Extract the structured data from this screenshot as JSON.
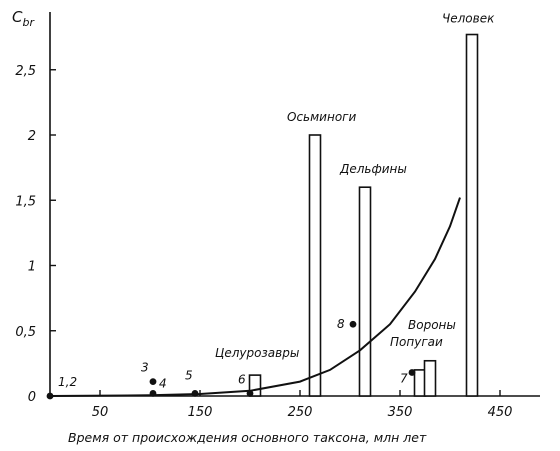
{
  "chart_data": {
    "type": "bar",
    "ylabel": "C",
    "ylabel_sub": "br",
    "xlabel": "Время от происхождения основного таксона, млн лет",
    "xlim": [
      0,
      450
    ],
    "ylim": [
      0,
      2.8
    ],
    "grid": false,
    "x_ticks": [
      {
        "value": 50,
        "label": "50"
      },
      {
        "value": 150,
        "label": "150"
      },
      {
        "value": 250,
        "label": "250"
      },
      {
        "value": 350,
        "label": "350"
      },
      {
        "value": 450,
        "label": "450"
      }
    ],
    "y_ticks": [
      {
        "value": 0,
        "label": "0"
      },
      {
        "value": 0.5,
        "label": "0,5"
      },
      {
        "value": 1,
        "label": "1"
      },
      {
        "value": 1.5,
        "label": "1,5"
      },
      {
        "value": 2,
        "label": "2"
      },
      {
        "value": 2.5,
        "label": "2,5"
      }
    ],
    "bars": [
      {
        "label": "Целурозавры",
        "x": 205,
        "value": 0.16
      },
      {
        "label": "Осьминоги",
        "x": 265,
        "value": 2.0
      },
      {
        "label": "Дельфины",
        "x": 315,
        "value": 1.6
      },
      {
        "label": "Попугаи",
        "x": 370,
        "value": 0.2
      },
      {
        "label": "Вороны",
        "x": 380,
        "value": 0.27
      },
      {
        "label": "Человек",
        "x": 422,
        "value": 2.77
      }
    ],
    "points": [
      {
        "label": "1,2",
        "x": 0,
        "value": 0
      },
      {
        "label": "3",
        "x": 103,
        "value": 0.11
      },
      {
        "label": "4",
        "x": 103,
        "value": 0.02
      },
      {
        "label": "5",
        "x": 145,
        "value": 0.02
      },
      {
        "label": "6",
        "x": 200,
        "value": 0.02
      },
      {
        "label": "7",
        "x": 362,
        "value": 0.18
      },
      {
        "label": "8",
        "x": 303,
        "value": 0.55
      }
    ],
    "curve": [
      [
        0,
        0
      ],
      [
        100,
        0.005
      ],
      [
        150,
        0.015
      ],
      [
        200,
        0.04
      ],
      [
        250,
        0.11
      ],
      [
        280,
        0.2
      ],
      [
        310,
        0.35
      ],
      [
        340,
        0.55
      ],
      [
        365,
        0.8
      ],
      [
        385,
        1.05
      ],
      [
        400,
        1.3
      ],
      [
        410,
        1.52
      ]
    ]
  }
}
